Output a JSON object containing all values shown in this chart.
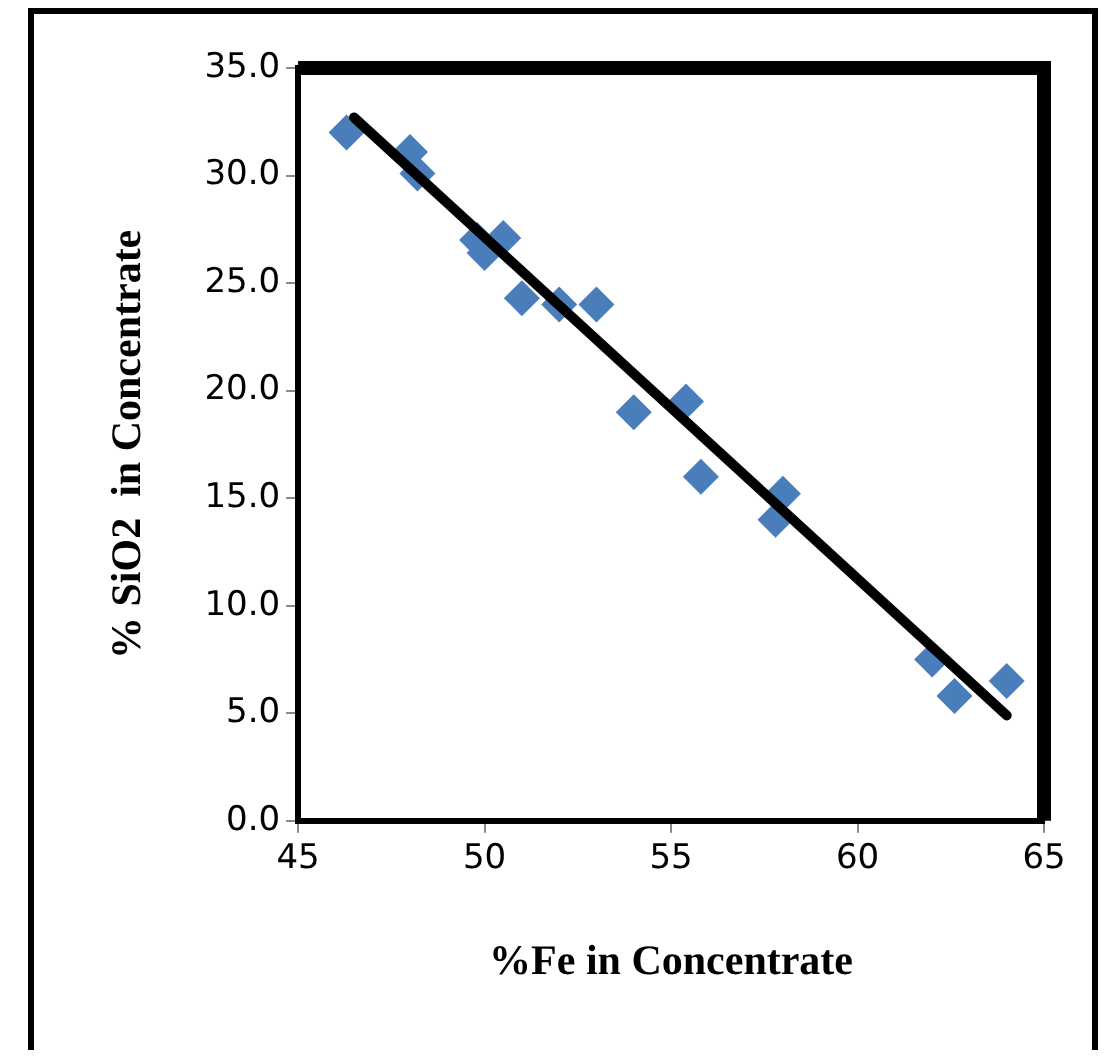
{
  "chart_data": {
    "type": "scatter",
    "xlabel": "%Fe in Concentrate",
    "ylabel": "% SiO2  in Concentrate",
    "xlim": [
      45,
      65
    ],
    "xticks": [
      45,
      50,
      55,
      60,
      65
    ],
    "ylim": [
      0,
      35
    ],
    "yticks": [
      {
        "value": 0,
        "label": "0.0"
      },
      {
        "value": 5,
        "label": "5.0"
      },
      {
        "value": 10,
        "label": "10.0"
      },
      {
        "value": 15,
        "label": "15.0"
      },
      {
        "value": 20,
        "label": "20.0"
      },
      {
        "value": 25,
        "label": "25.0"
      },
      {
        "value": 30,
        "label": "30.0"
      },
      {
        "value": 35,
        "label": "35.0"
      }
    ],
    "grid": false,
    "legend": false,
    "series": [
      {
        "marker": "diamond",
        "color": "#4a7ebb",
        "x": [
          46.3,
          48,
          48.2,
          49.8,
          50,
          50.5,
          51,
          52,
          53,
          54,
          55.4,
          55.8,
          57.8,
          58,
          62,
          62.6,
          64
        ],
        "values": [
          32,
          31.1,
          30.1,
          27,
          26.4,
          27.1,
          24.3,
          24,
          24,
          19,
          19.5,
          16,
          14,
          15.2,
          7.5,
          5.8,
          6.5
        ]
      },
      {
        "type": "line",
        "marker": "none",
        "color": "#000000",
        "x": [
          46.5,
          64
        ],
        "values": [
          32.7,
          4.9
        ]
      }
    ]
  }
}
